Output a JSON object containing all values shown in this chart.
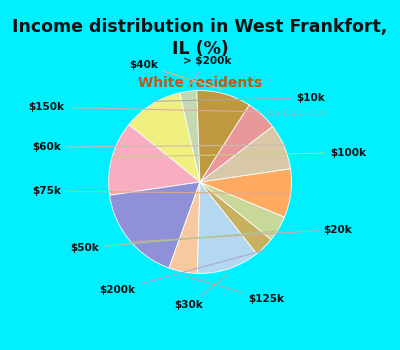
{
  "title": "Income distribution in West Frankfort,\nIL (%)",
  "subtitle": "White residents",
  "title_color": "#111111",
  "subtitle_color": "#c05818",
  "bg_top": "#00f0ff",
  "bg_chart": "#dff0e8",
  "watermark": "City-Data.com",
  "labels": [
    "> $200k",
    "$10k",
    "$100k",
    "$20k",
    "$125k",
    "$30k",
    "$200k",
    "$50k",
    "$75k",
    "$60k",
    "$150k",
    "$40k"
  ],
  "sizes": [
    3.0,
    10.5,
    13.0,
    17.0,
    5.0,
    11.0,
    3.5,
    4.5,
    8.5,
    8.0,
    5.5,
    9.5
  ],
  "colors": [
    "#c4d9b0",
    "#f0f080",
    "#f8aec0",
    "#9090d8",
    "#f8c8a0",
    "#b4d8f0",
    "#c8b060",
    "#c8d898",
    "#ffaa60",
    "#d8c8a8",
    "#e89898",
    "#c09840"
  ],
  "startangle": 92,
  "label_fontsize": 7.5,
  "title_fontsize": 12.5,
  "subtitle_fontsize": 10
}
